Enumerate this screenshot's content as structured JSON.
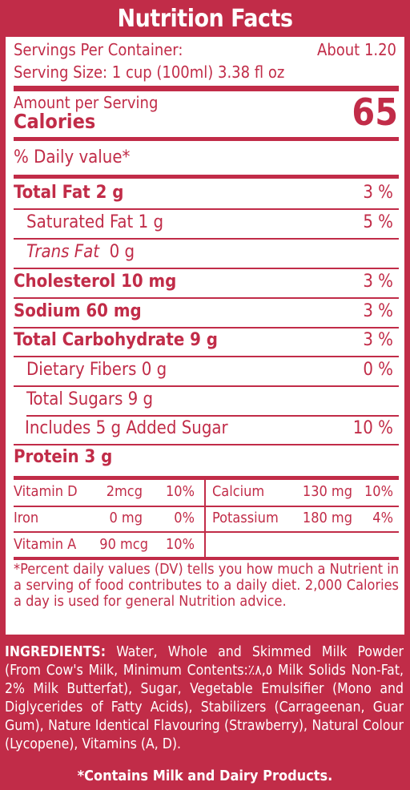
{
  "title": "Nutrition Facts",
  "servings": {
    "per_container_label": "Servings Per Container:",
    "per_container_value": "About 1.20",
    "serving_size": "Serving Size: 1 cup (100ml) 3.38 fl oz"
  },
  "amount_label": "Amount per Serving",
  "calories_label": "Calories",
  "calories_value": "65",
  "daily_value_header": "% Daily value*",
  "nutrients": {
    "total_fat": {
      "label": "Total Fat  2 g",
      "dv": "3 %"
    },
    "saturated_fat": {
      "label": "Saturated Fat  1 g",
      "dv": "5 %"
    },
    "trans_fat": {
      "label_italic": "Trans Fat",
      "amount": "  0 g"
    },
    "cholesterol": {
      "label": "Cholesterol 10 mg",
      "dv": "3 %"
    },
    "sodium": {
      "label": "Sodium  60 mg",
      "dv": "3 %"
    },
    "total_carb": {
      "label": "Total Carbohydrate 9 g",
      "dv": "3 %"
    },
    "dietary_fiber": {
      "label": "Dietary Fibers  0 g",
      "dv": "0 %"
    },
    "total_sugars": {
      "label": "Total Sugars  9 g"
    },
    "added_sugar": {
      "label": "Includes 5 g Added Sugar",
      "dv": "10 %"
    },
    "protein": {
      "label": "Protein  3 g"
    }
  },
  "vitamins": {
    "vitamin_d": {
      "name": "Vitamin D",
      "amount": "2mcg",
      "dv": "10%"
    },
    "calcium": {
      "name": "Calcium",
      "amount": "130 mg",
      "dv": "10%"
    },
    "iron": {
      "name": "Iron",
      "amount": "0 mg",
      "dv": "0%"
    },
    "potassium": {
      "name": "Potassium",
      "amount": "180 mg",
      "dv": "4%"
    },
    "vitamin_a": {
      "name": "Vitamin A",
      "amount": "90 mcg",
      "dv": "10%"
    }
  },
  "footnote": "*Percent daily values (DV) tells you how much a Nutrient in a serving of food contributes to a daily diet. 2,000 Calories a day is used for general Nutrition advice.",
  "ingredients": {
    "label": "INGREDIENTS:",
    "text": " Water, Whole and Skimmed Milk Powder (From Cow's Milk, Minimum Contents:٪٨,٥ Milk Solids Non-Fat, 2% Milk Butterfat), Sugar, Vegetable Emulsifier (Mono and Diglycerides of Fatty Acids), Stabilizers (Carrageenan, Guar Gum), Nature Identical Flavouring (Strawberry), Natural Colour (Lycopene), Vitamins (A, D)."
  },
  "allergen": "*Contains Milk and Dairy Products.",
  "colors": {
    "brand": "#c12c48",
    "background": "#ffffff"
  }
}
